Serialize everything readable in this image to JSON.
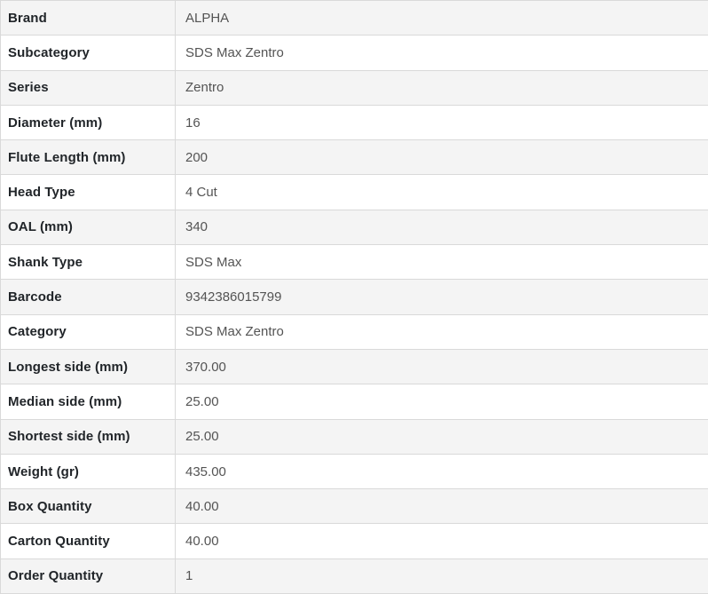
{
  "table": {
    "name": "product-specifications",
    "rows": [
      {
        "label": "Brand",
        "value": "ALPHA"
      },
      {
        "label": "Subcategory",
        "value": "SDS Max Zentro"
      },
      {
        "label": "Series",
        "value": "Zentro"
      },
      {
        "label": "Diameter (mm)",
        "value": "16"
      },
      {
        "label": "Flute Length (mm)",
        "value": "200"
      },
      {
        "label": "Head Type",
        "value": "4 Cut"
      },
      {
        "label": "OAL (mm)",
        "value": "340"
      },
      {
        "label": "Shank Type",
        "value": "SDS Max"
      },
      {
        "label": "Barcode",
        "value": "9342386015799"
      },
      {
        "label": "Category",
        "value": "SDS Max Zentro"
      },
      {
        "label": "Longest side (mm)",
        "value": "370.00"
      },
      {
        "label": "Median side (mm)",
        "value": "25.00"
      },
      {
        "label": "Shortest side (mm)",
        "value": "25.00"
      },
      {
        "label": "Weight (gr)",
        "value": "435.00"
      },
      {
        "label": "Box Quantity",
        "value": "40.00"
      },
      {
        "label": "Carton Quantity",
        "value": "40.00"
      },
      {
        "label": "Order Quantity",
        "value": "1"
      }
    ]
  },
  "colors": {
    "stripe_background": "#f4f4f4",
    "row_background": "#ffffff",
    "border": "#d9d9d9",
    "label_text": "#212529",
    "value_text": "#545454"
  }
}
